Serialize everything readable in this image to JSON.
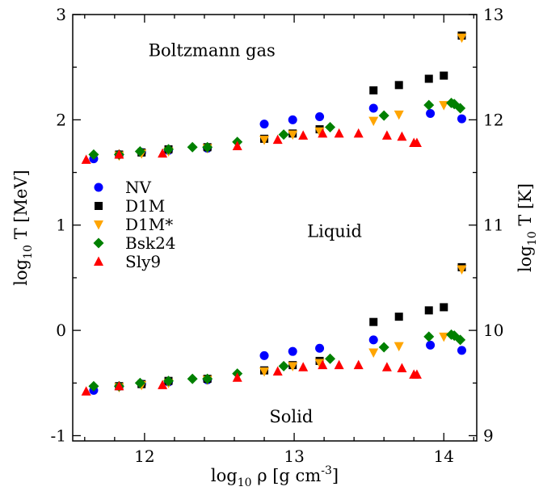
{
  "chart_data": {
    "type": "scatter",
    "title": "",
    "xlabel": "log10 ρ [g cm-3]",
    "ylabel": "log10 T [MeV]",
    "ylabel_right": "log10 T [K]",
    "xlabel_parts": {
      "log": "log",
      "sub": "10",
      "main": " ρ [g cm",
      "sup": "-3",
      "end": "]"
    },
    "ylabel_parts": {
      "log": "log",
      "sub": "10",
      "main": " T [MeV]"
    },
    "ylabel_right_parts": {
      "log": "log",
      "sub": "10",
      "main": " T [K]"
    },
    "xlim": [
      11.52,
      14.22
    ],
    "ylim": [
      -1.05,
      3.0
    ],
    "ylim_right": [
      8.95,
      13.0
    ],
    "x_ticks": [
      12,
      13,
      14
    ],
    "x_tick_labels": [
      "12",
      "13",
      "14"
    ],
    "y_ticks": [
      -1,
      0,
      1,
      2,
      3
    ],
    "y_tick_labels": [
      "-1",
      "0",
      "1",
      "2",
      "3"
    ],
    "y_ticks_right": [
      9,
      10,
      11,
      12,
      13
    ],
    "y_tick_labels_right": [
      "9",
      "10",
      "11",
      "12",
      "13"
    ],
    "grid": false,
    "legend_position": "middle-left",
    "annotations": [
      {
        "text": "Boltzmann gas",
        "x": 12.45,
        "y": 2.66
      },
      {
        "text": "Liquid",
        "x": 13.27,
        "y": 0.94
      },
      {
        "text": "Solid",
        "x": 12.98,
        "y": -0.82
      }
    ],
    "series": [
      {
        "name": "NV",
        "color": "#0000ff",
        "marker": "circle",
        "points": [
          [
            11.66,
            1.63
          ],
          [
            11.83,
            1.67
          ],
          [
            11.98,
            1.69
          ],
          [
            12.16,
            1.71
          ],
          [
            12.42,
            1.73
          ],
          [
            12.8,
            1.96
          ],
          [
            12.99,
            2.0
          ],
          [
            13.17,
            2.03
          ],
          [
            13.53,
            2.11
          ],
          [
            13.91,
            2.06
          ],
          [
            14.12,
            2.01
          ],
          [
            11.66,
            -0.57
          ],
          [
            11.83,
            -0.53
          ],
          [
            11.98,
            -0.51
          ],
          [
            12.16,
            -0.49
          ],
          [
            12.42,
            -0.47
          ],
          [
            12.8,
            -0.24
          ],
          [
            12.99,
            -0.2
          ],
          [
            13.17,
            -0.17
          ],
          [
            13.53,
            -0.09
          ],
          [
            13.91,
            -0.14
          ],
          [
            14.12,
            -0.19
          ]
        ]
      },
      {
        "name": "D1M",
        "color": "#000000",
        "marker": "square",
        "points": [
          [
            11.83,
            1.67
          ],
          [
            11.98,
            1.69
          ],
          [
            12.16,
            1.72
          ],
          [
            12.42,
            1.74
          ],
          [
            12.8,
            1.82
          ],
          [
            12.99,
            1.87
          ],
          [
            13.17,
            1.91
          ],
          [
            13.53,
            2.28
          ],
          [
            13.7,
            2.33
          ],
          [
            13.9,
            2.39
          ],
          [
            14.0,
            2.42
          ],
          [
            14.12,
            2.8
          ],
          [
            11.83,
            -0.53
          ],
          [
            11.98,
            -0.51
          ],
          [
            12.16,
            -0.48
          ],
          [
            12.42,
            -0.46
          ],
          [
            12.8,
            -0.38
          ],
          [
            12.99,
            -0.33
          ],
          [
            13.17,
            -0.29
          ],
          [
            13.53,
            0.08
          ],
          [
            13.7,
            0.13
          ],
          [
            13.9,
            0.19
          ],
          [
            14.0,
            0.22
          ],
          [
            14.12,
            0.6
          ]
        ]
      },
      {
        "name": "D1M*",
        "color": "#ffa500",
        "marker": "triangle-down",
        "points": [
          [
            11.83,
            1.66
          ],
          [
            11.98,
            1.68
          ],
          [
            12.16,
            1.7
          ],
          [
            12.42,
            1.73
          ],
          [
            12.8,
            1.81
          ],
          [
            12.99,
            1.86
          ],
          [
            13.17,
            1.89
          ],
          [
            13.53,
            1.99
          ],
          [
            13.7,
            2.05
          ],
          [
            14.0,
            2.14
          ],
          [
            14.12,
            2.78
          ],
          [
            11.83,
            -0.54
          ],
          [
            11.98,
            -0.52
          ],
          [
            12.16,
            -0.5
          ],
          [
            12.42,
            -0.47
          ],
          [
            12.8,
            -0.39
          ],
          [
            12.99,
            -0.34
          ],
          [
            13.17,
            -0.31
          ],
          [
            13.53,
            -0.21
          ],
          [
            13.7,
            -0.15
          ],
          [
            14.0,
            -0.06
          ],
          [
            14.12,
            0.58
          ]
        ]
      },
      {
        "name": "Bsk24",
        "color": "#008000",
        "marker": "diamond",
        "points": [
          [
            11.66,
            1.67
          ],
          [
            11.83,
            1.67
          ],
          [
            11.97,
            1.7
          ],
          [
            12.16,
            1.72
          ],
          [
            12.32,
            1.74
          ],
          [
            12.42,
            1.74
          ],
          [
            12.62,
            1.79
          ],
          [
            12.93,
            1.86
          ],
          [
            13.24,
            1.93
          ],
          [
            13.6,
            2.04
          ],
          [
            13.9,
            2.14
          ],
          [
            14.05,
            2.16
          ],
          [
            14.07,
            2.15
          ],
          [
            14.11,
            2.11
          ],
          [
            11.66,
            -0.53
          ],
          [
            11.83,
            -0.53
          ],
          [
            11.97,
            -0.5
          ],
          [
            12.16,
            -0.48
          ],
          [
            12.32,
            -0.46
          ],
          [
            12.42,
            -0.46
          ],
          [
            12.62,
            -0.41
          ],
          [
            12.93,
            -0.34
          ],
          [
            13.24,
            -0.27
          ],
          [
            13.6,
            -0.16
          ],
          [
            13.9,
            -0.06
          ],
          [
            14.05,
            -0.04
          ],
          [
            14.07,
            -0.05
          ],
          [
            14.11,
            -0.09
          ]
        ]
      },
      {
        "name": "Sly9",
        "color": "#ff0000",
        "marker": "triangle-up",
        "points": [
          [
            11.61,
            1.62
          ],
          [
            11.83,
            1.67
          ],
          [
            12.12,
            1.68
          ],
          [
            12.62,
            1.75
          ],
          [
            12.89,
            1.81
          ],
          [
            13.06,
            1.85
          ],
          [
            13.19,
            1.87
          ],
          [
            13.3,
            1.87
          ],
          [
            13.43,
            1.87
          ],
          [
            13.62,
            1.85
          ],
          [
            13.72,
            1.84
          ],
          [
            13.8,
            1.78
          ],
          [
            13.82,
            1.78
          ],
          [
            11.61,
            -0.58
          ],
          [
            11.83,
            -0.53
          ],
          [
            12.12,
            -0.52
          ],
          [
            12.62,
            -0.45
          ],
          [
            12.89,
            -0.39
          ],
          [
            13.06,
            -0.35
          ],
          [
            13.19,
            -0.33
          ],
          [
            13.3,
            -0.33
          ],
          [
            13.43,
            -0.33
          ],
          [
            13.62,
            -0.35
          ],
          [
            13.72,
            -0.36
          ],
          [
            13.8,
            -0.42
          ],
          [
            13.82,
            -0.42
          ]
        ]
      }
    ]
  }
}
